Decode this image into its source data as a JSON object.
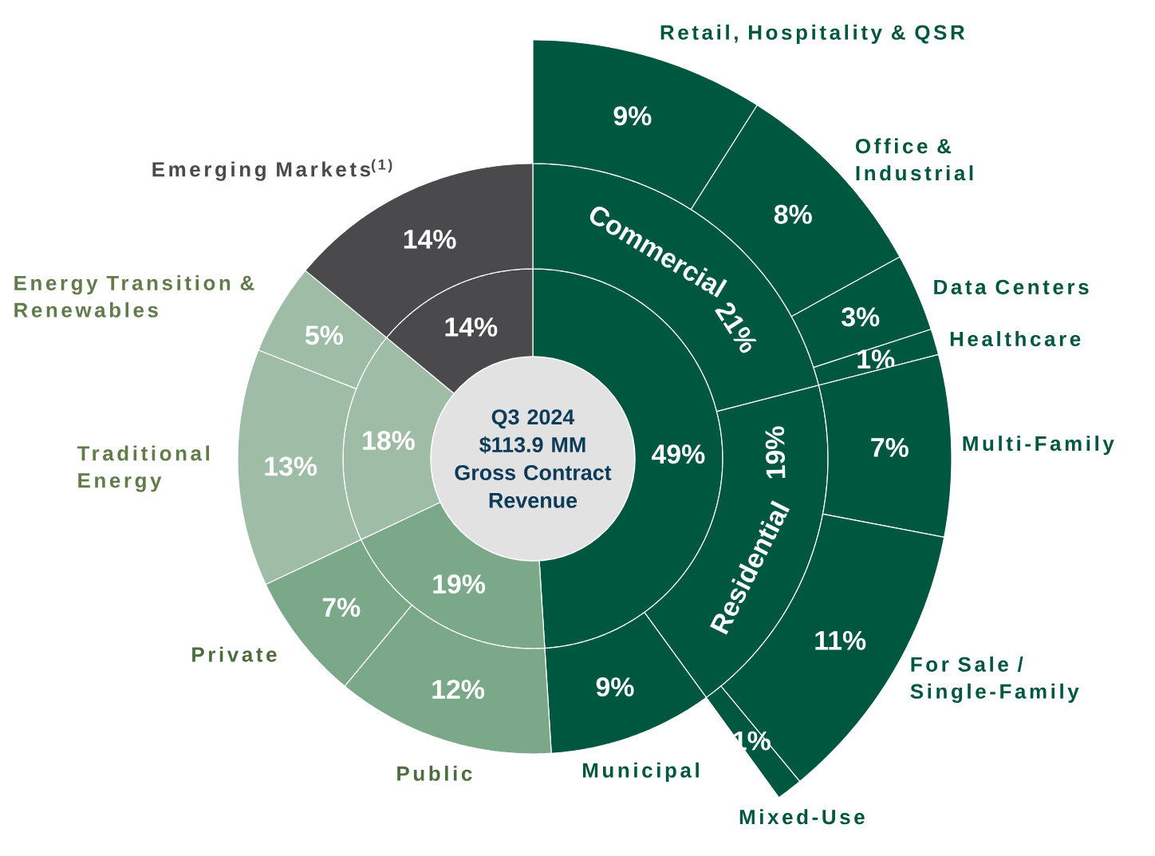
{
  "chart_data": [
    {
      "type": "donut",
      "categories": [
        null,
        null,
        null,
        null
      ],
      "values": [
        49,
        19,
        18,
        14
      ],
      "value_labels": [
        "49%",
        "19%",
        "18%",
        "14%"
      ],
      "colors": [
        "#00573f",
        "#7ca88a",
        "#9ebca6",
        "#4a4a4d"
      ],
      "annotations": [
        "Q3 2024",
        "$113.9 MM",
        "Gross Contract Revenue"
      ]
    },
    {
      "type": "donut",
      "categories": [
        "Commercial",
        "Residential",
        "Municipal",
        "Public",
        "Private",
        "Traditional Energy",
        "Energy Transition & Renewables",
        "Emerging Markets$^{(1)}$"
      ],
      "values": [
        21,
        19,
        9,
        12,
        7,
        13,
        5,
        14
      ],
      "value_labels": [
        "21%",
        "19%",
        "9%",
        "12%",
        "7%",
        "13%",
        "5%",
        "14%"
      ],
      "colors": [
        "#00573f",
        "#00573f",
        "#00573f",
        "#7ca88a",
        "#7ca88a",
        "#9ebca6",
        "#9ebca6",
        "#4a4a4d"
      ]
    },
    {
      "type": "donut",
      "categories": [
        "Retail, Hospitality & QSR",
        "Office & Industrial",
        "Data Centers",
        "Healthcare",
        "Multi-Family",
        "For Sale / Single-Family",
        "Mixed-Use"
      ],
      "values": [
        9,
        8,
        3,
        1,
        7,
        11,
        1
      ],
      "value_labels": [
        "9%",
        "8%",
        "3%",
        "1%",
        "7%",
        "11%",
        "1%"
      ],
      "colors": [
        "#00573f",
        "#00573f",
        "#00573f",
        "#00573f",
        "#00573f",
        "#00573f",
        "#00573f"
      ]
    }
  ]
}
